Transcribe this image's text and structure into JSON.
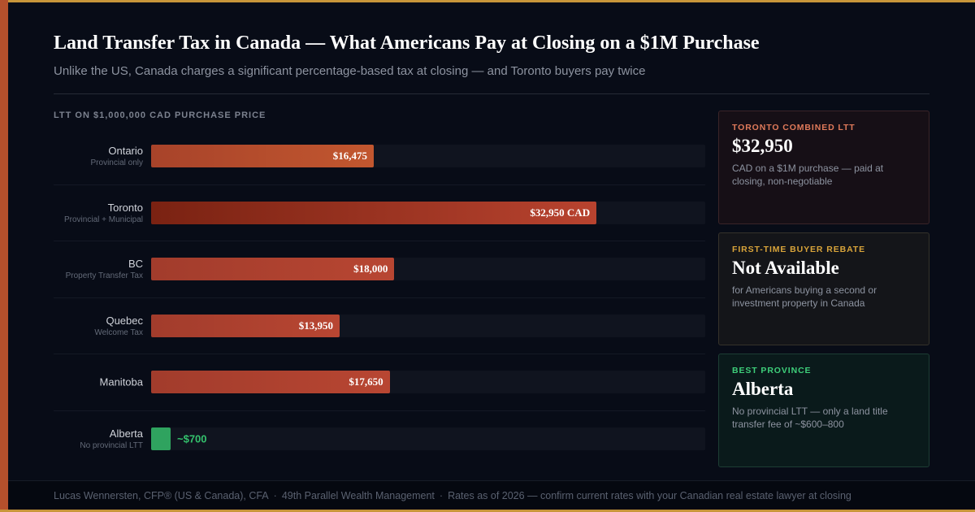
{
  "title": "Land Transfer Tax in Canada — What Americans Pay at Closing on a $1M Purchase",
  "subtitle": "Unlike the US, Canada charges a significant percentage-based tax at closing — and Toronto buyers pay twice",
  "chart_label": "LTT ON $1,000,000 CAD PURCHASE PRICE",
  "chart_data": {
    "type": "bar",
    "orientation": "horizontal",
    "title": "LTT ON $1,000,000 CAD PURCHASE PRICE",
    "xlim": [
      0,
      41000
    ],
    "grid": false,
    "categories": [
      "Ontario",
      "Toronto",
      "BC",
      "Quebec",
      "Manitoba",
      "Alberta"
    ],
    "values": [
      16475,
      32950,
      18000,
      13950,
      17650,
      700
    ],
    "bars": [
      {
        "name": "Ontario",
        "sub": "Provincial only",
        "value": 16475,
        "label": "$16,475",
        "style": "orange"
      },
      {
        "name": "Toronto",
        "sub": "Provincial + Municipal",
        "value": 32950,
        "label": "$32,950 CAD",
        "style": "dark"
      },
      {
        "name": "BC",
        "sub": "Property Transfer Tax",
        "value": 18000,
        "label": "$18,000",
        "style": "red"
      },
      {
        "name": "Quebec",
        "sub": "Welcome Tax",
        "value": 13950,
        "label": "$13,950",
        "style": "red"
      },
      {
        "name": "Manitoba",
        "sub": "",
        "value": 17650,
        "label": "$17,650",
        "style": "red"
      },
      {
        "name": "Alberta",
        "sub": "No provincial LTT",
        "value": 700,
        "label": "~$700",
        "style": "green"
      }
    ]
  },
  "cards": {
    "toronto": {
      "kicker": "TORONTO COMBINED LTT",
      "value": "$32,950",
      "desc": "CAD on a $1M purchase — paid at closing, non-negotiable"
    },
    "rebate": {
      "kicker": "FIRST-TIME BUYER REBATE",
      "value": "Not Available",
      "desc": "for Americans buying a second or investment property in Canada"
    },
    "best": {
      "kicker": "BEST PROVINCE",
      "value": "Alberta",
      "desc": "No provincial LTT — only a land title transfer fee of ~$600–800"
    }
  },
  "footer": {
    "author": "Lucas Wennersten, CFP® (US & Canada), CFA",
    "firm": "49th Parallel Wealth Management",
    "note": "Rates as of 2026 — confirm current rates with your Canadian real estate lawyer at closing",
    "separator": "·"
  },
  "colors": {
    "background": "#080c17",
    "accent_gold": "#c8963a",
    "accent_rust": "#b4502c",
    "green": "#34c26d"
  }
}
